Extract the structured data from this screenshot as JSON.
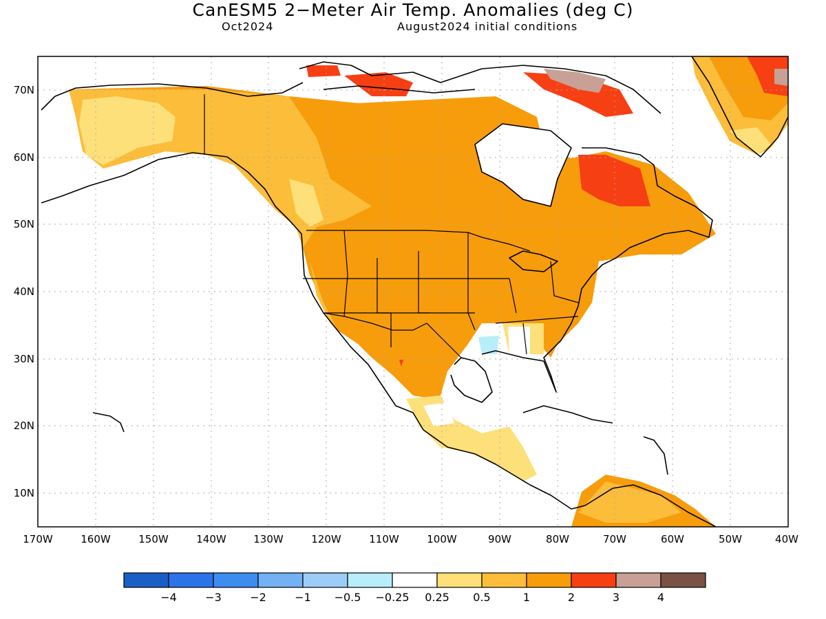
{
  "title": "CanESM5 2−Meter Air Temp. Anomalies (deg C)",
  "valid_month": "Oct2024",
  "initial_conditions": "August2024 initial conditions",
  "lat_labels": [
    "70N",
    "60N",
    "50N",
    "40N",
    "30N",
    "20N",
    "10N"
  ],
  "lon_labels": [
    "170W",
    "160W",
    "150W",
    "140W",
    "130W",
    "120W",
    "110W",
    "100W",
    "90W",
    "80W",
    "70W",
    "60W",
    "50W",
    "40W"
  ],
  "colorbar": {
    "colors": [
      "#1a5fc6",
      "#2b73e8",
      "#3d8cf0",
      "#74b1f4",
      "#9ccdf8",
      "#b8eef9",
      "#ffffff",
      "#fde07a",
      "#fbbd3a",
      "#f79c0b",
      "#f73f14",
      "#c8a096",
      "#7b5145"
    ],
    "labels": [
      "−4",
      "−3",
      "−2",
      "−1",
      "−0.5",
      "−0.25",
      "0.25",
      "0.5",
      "1",
      "2",
      "3",
      "4"
    ]
  }
}
